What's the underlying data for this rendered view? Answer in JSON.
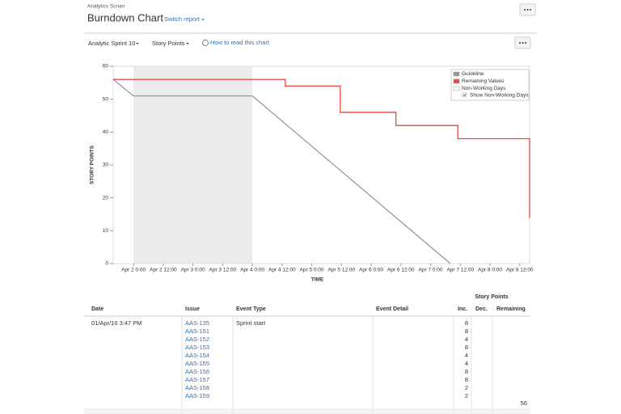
{
  "header": {
    "project": "Analytics Scrum",
    "title": "Burndown Chart",
    "switch_report": "Switch report"
  },
  "toolbar": {
    "sprint": "Analytic Sprint 10",
    "estimate": "Story Points",
    "help": "How to read this chart"
  },
  "chart_data": {
    "type": "line",
    "xlabel": "TIME",
    "ylabel": "STORY POINTS",
    "xlim": [
      15.8,
      184
    ],
    "ylim": [
      0,
      60
    ],
    "yticks": [
      0,
      10,
      20,
      30,
      40,
      50,
      60
    ],
    "xticks": [
      {
        "value": 24,
        "label": "Apr 2 0:00"
      },
      {
        "value": 36,
        "label": "Apr 2 12:00"
      },
      {
        "value": 48,
        "label": "Apr 3 0:00"
      },
      {
        "value": 60,
        "label": "Apr 3 12:00"
      },
      {
        "value": 72,
        "label": "Apr 4 0:00"
      },
      {
        "value": 84,
        "label": "Apr 4 12:00"
      },
      {
        "value": 96,
        "label": "Apr 5 0:00"
      },
      {
        "value": 108,
        "label": "Apr 5 12:00"
      },
      {
        "value": 120,
        "label": "Apr 6 0:00"
      },
      {
        "value": 132,
        "label": "Apr 6 12:00"
      },
      {
        "value": 144,
        "label": "Apr 7 0:00"
      },
      {
        "value": 156,
        "label": "Apr 7 12:00"
      },
      {
        "value": 168,
        "label": "Apr 8 0:00"
      },
      {
        "value": 180,
        "label": "Apr 8 12:00"
      }
    ],
    "non_working": {
      "name": "Non-Working Days",
      "color": "#ebebeb",
      "ranges": [
        [
          24,
          72
        ]
      ]
    },
    "series": [
      {
        "name": "Guideline",
        "color": "#999999",
        "x": [
          15.8,
          24,
          72,
          152
        ],
        "values": [
          56,
          51,
          51,
          0
        ]
      },
      {
        "name": "Remaining Values",
        "color": "#e2493f",
        "x": [
          15.8,
          85.3,
          85.3,
          107.5,
          107.5,
          130,
          130,
          155,
          155,
          184,
          184
        ],
        "values": [
          56,
          56,
          54,
          54,
          46,
          46,
          42,
          42,
          38,
          38,
          14
        ]
      }
    ],
    "legend_option": "Show Non-Working Days"
  },
  "table": {
    "group_header": "Story Points",
    "columns": [
      "Date",
      "Issue",
      "Event Type",
      "Event Detail",
      "Inc.",
      "Dec.",
      "Remaining"
    ],
    "rows": [
      {
        "date": "01/Apr/16 3:47 PM",
        "event_type": "Sprint start",
        "issues": [
          "AAS-135",
          "AAS-151",
          "AAS-152",
          "AAS-153",
          "AAS-154",
          "AAS-155",
          "AAS-156",
          "AAS-157",
          "AAS-158",
          "AAS-159"
        ],
        "inc": [
          "8",
          "8",
          "4",
          "8",
          "4",
          "4",
          "8",
          "8",
          "2",
          "2"
        ],
        "remaining": "56"
      }
    ]
  }
}
